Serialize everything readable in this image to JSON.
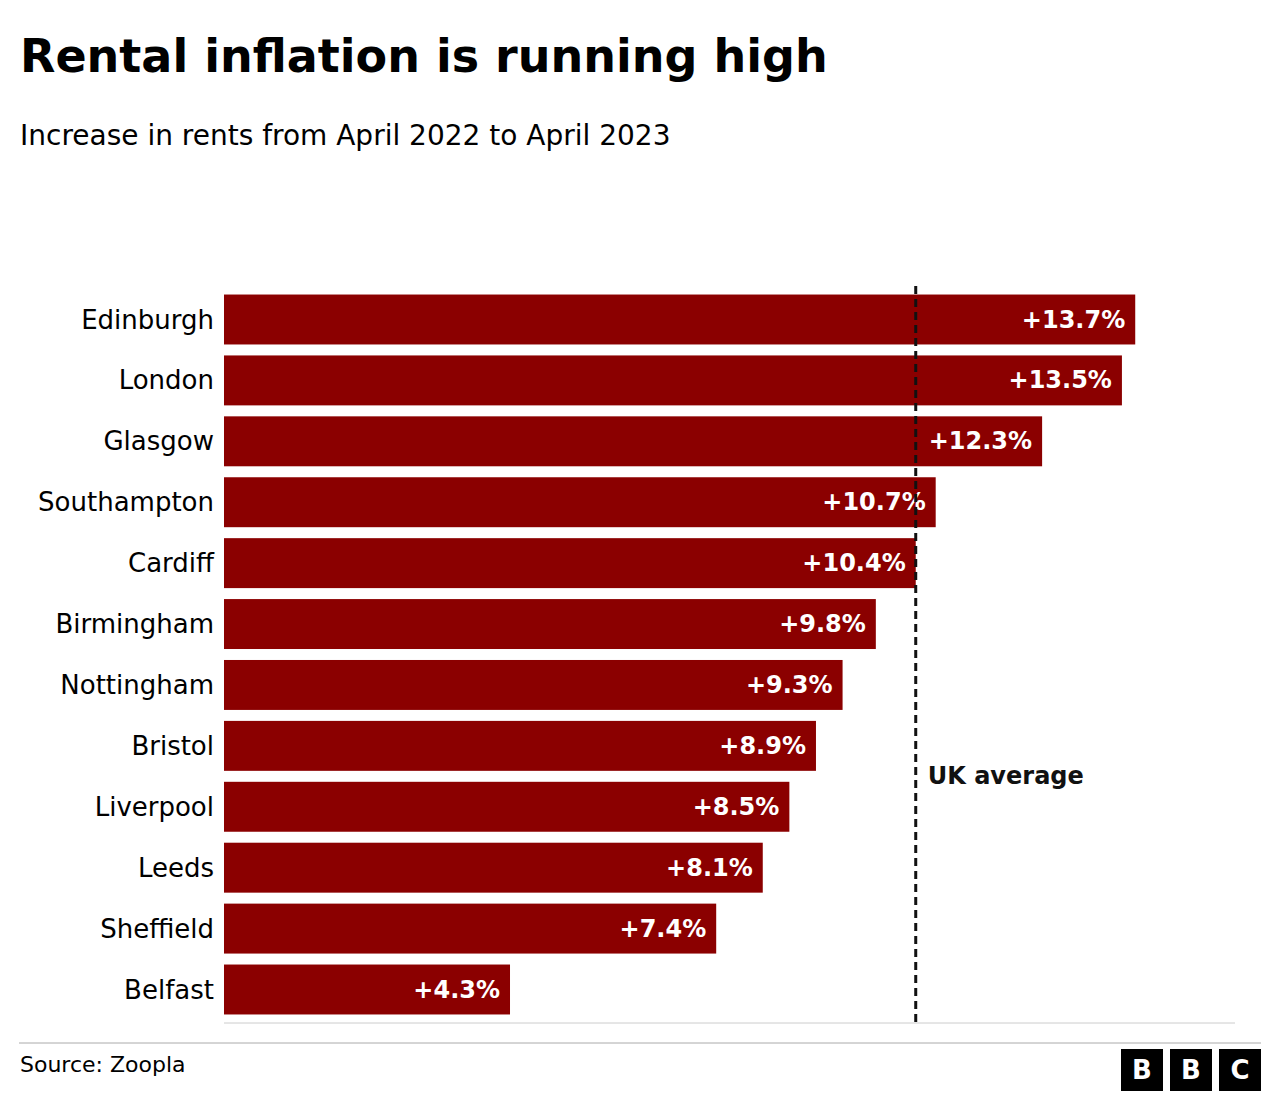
{
  "chart_data": {
    "type": "bar",
    "orientation": "horizontal",
    "title": "Rental inflation is running high",
    "subtitle": "Increase in rents from April 2022 to April 2023",
    "categories": [
      "Edinburgh",
      "London",
      "Glasgow",
      "Southampton",
      "Cardiff",
      "Birmingham",
      "Nottingham",
      "Bristol",
      "Liverpool",
      "Leeds",
      "Sheffield",
      "Belfast"
    ],
    "values": [
      13.7,
      13.5,
      12.3,
      10.7,
      10.4,
      9.8,
      9.3,
      8.9,
      8.5,
      8.1,
      7.4,
      4.3
    ],
    "value_labels": [
      "+13.7%",
      "+13.5%",
      "+12.3%",
      "+10.7%",
      "+10.4%",
      "+9.8%",
      "+9.3%",
      "+8.9%",
      "+8.5%",
      "+8.1%",
      "+7.4%",
      "+4.3%"
    ],
    "data_labels": true,
    "color": "#8B0000",
    "xlim": [
      0,
      15.2
    ],
    "xticks": [],
    "tick_labels": "y",
    "grid": false,
    "annotations": [
      {
        "type": "vline",
        "x": 10.4,
        "label": "UK average"
      }
    ],
    "source": "Source: Zoopla",
    "logo": "BBC"
  }
}
